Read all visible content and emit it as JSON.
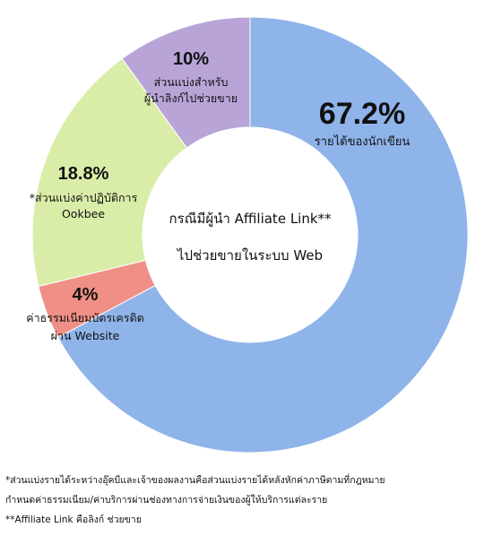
{
  "chart_data": {
    "type": "pie",
    "title": "",
    "center_label": [
      "กรณีมีผู้นำ Affiliate Link**",
      "ไปช่วยขายในระบบ Web"
    ],
    "slices": [
      {
        "label": [
          "รายได้ของนักเขียน"
        ],
        "value": 67.2,
        "value_text": "67.2%",
        "color": "#8fb4ea"
      },
      {
        "label": [
          "ค่าธรรมเนียมบัตรเครดิต",
          "ผ่าน Website"
        ],
        "value": 4,
        "value_text": "4%",
        "color": "#ef8f86"
      },
      {
        "label": [
          "*ส่วนแบ่งค่าปฏิบัติการ",
          "Ookbee"
        ],
        "value": 18.8,
        "value_text": "18.8%",
        "color": "#d9eda8"
      },
      {
        "label": [
          "ส่วนแบ่งสำหรับ",
          "ผู้นำลิงก์ไปช่วยขาย"
        ],
        "value": 10,
        "value_text": "10%",
        "color": "#b9a4d8"
      }
    ]
  },
  "notes": [
    "*ส่วนแบ่งรายได้ระหว่างอุ๊คบีและเจ้าของผลงานคือส่วนแบ่งรายได้หลังหักค่าภาษีตามที่กฎหมาย",
    "กำหนดค่าธรรมเนียม/ค่าบริการผ่านช่องทางการจ่ายเงินของผู้ให้บริการแต่ละราย",
    "**Affiliate Link คือลิงก์ ช่วยขาย"
  ]
}
